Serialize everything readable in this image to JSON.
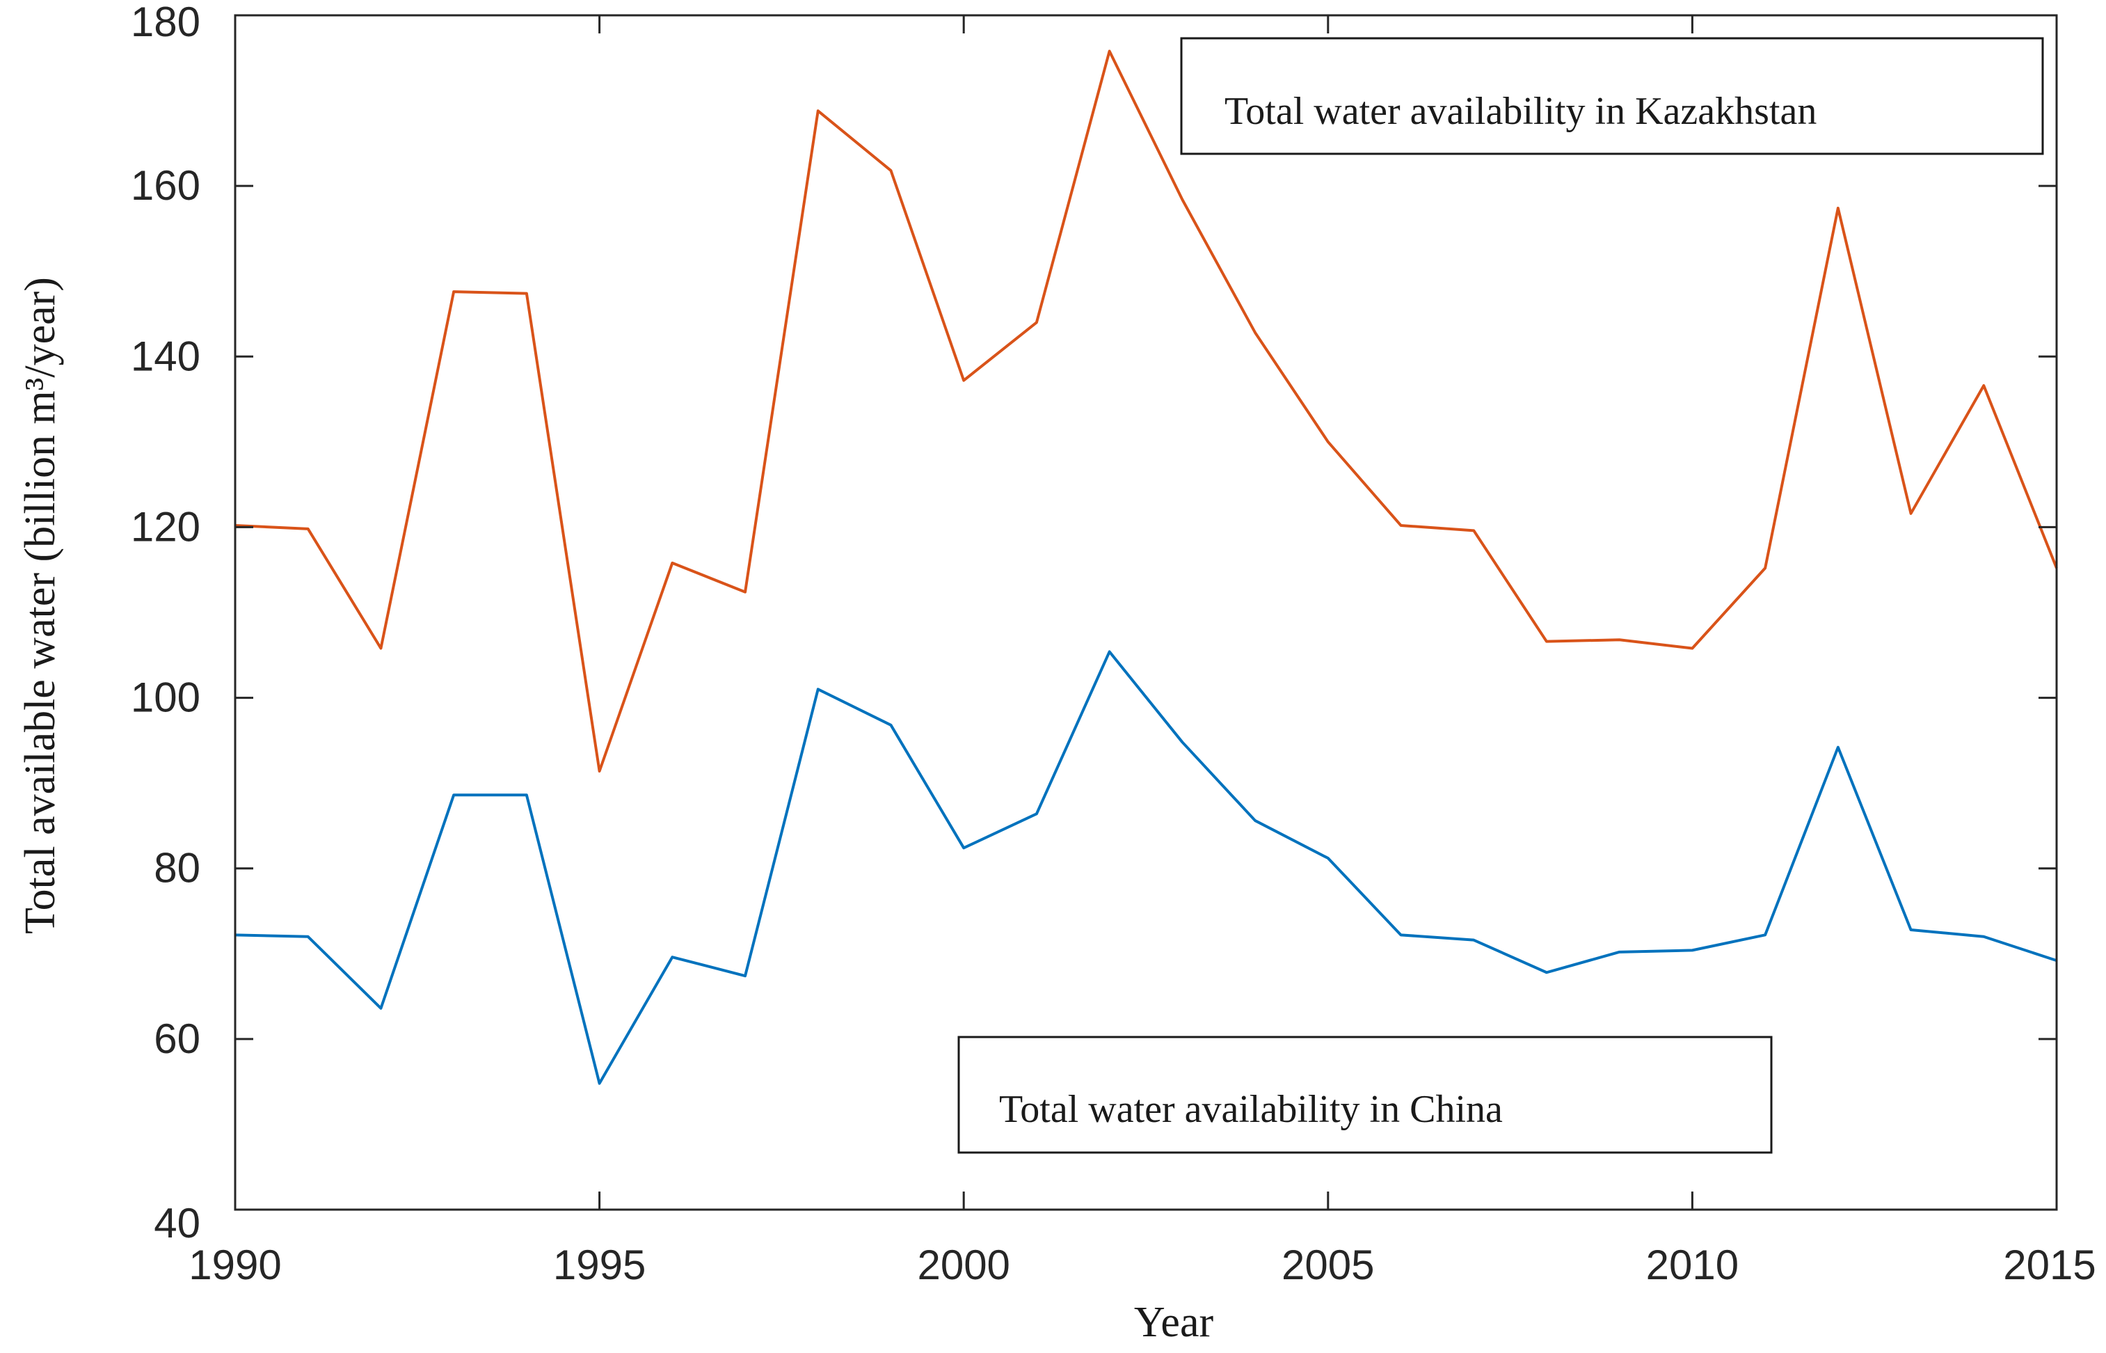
{
  "chart_data": {
    "type": "line",
    "title": "",
    "xlabel": "Year",
    "ylabel": "Total available water (billion m³/year)",
    "xlim": [
      1990,
      2015
    ],
    "ylim": [
      40,
      180
    ],
    "x": [
      1990,
      1991,
      1992,
      1993,
      1994,
      1995,
      1996,
      1997,
      1998,
      1999,
      2000,
      2001,
      2002,
      2003,
      2004,
      2005,
      2006,
      2007,
      2008,
      2009,
      2010,
      2011,
      2012,
      2013,
      2014,
      2015
    ],
    "x_ticks": [
      "1990",
      "1995",
      "2000",
      "2005",
      "2010",
      "2015"
    ],
    "y_ticks": [
      "40",
      "60",
      "80",
      "100",
      "120",
      "140",
      "160",
      "180"
    ],
    "series": [
      {
        "name": "Kazakhstan",
        "color": "#d95319",
        "values": [
          120.2,
          119.8,
          105.8,
          147.6,
          147.4,
          91.4,
          115.8,
          112.4,
          168.8,
          161.8,
          137.2,
          144.0,
          175.8,
          158.4,
          142.8,
          130.0,
          120.2,
          119.6,
          106.6,
          106.8,
          105.8,
          115.2,
          157.4,
          121.6,
          136.6,
          115.2
        ]
      },
      {
        "name": "China",
        "color": "#0072bd",
        "values": [
          72.2,
          72.0,
          63.6,
          88.6,
          88.6,
          54.8,
          69.6,
          67.4,
          101.0,
          96.8,
          82.4,
          86.4,
          105.4,
          94.8,
          85.6,
          81.2,
          72.2,
          71.6,
          67.8,
          70.2,
          70.4,
          72.2,
          94.2,
          72.8,
          72.0,
          69.2
        ]
      }
    ],
    "legend": [
      {
        "series": "Kazakhstan",
        "label": "Total water  availability in Kazakhstan",
        "placement": "top-right"
      },
      {
        "series": "China",
        "label": "Total water  availability in China",
        "placement": "bottom-center"
      }
    ]
  }
}
